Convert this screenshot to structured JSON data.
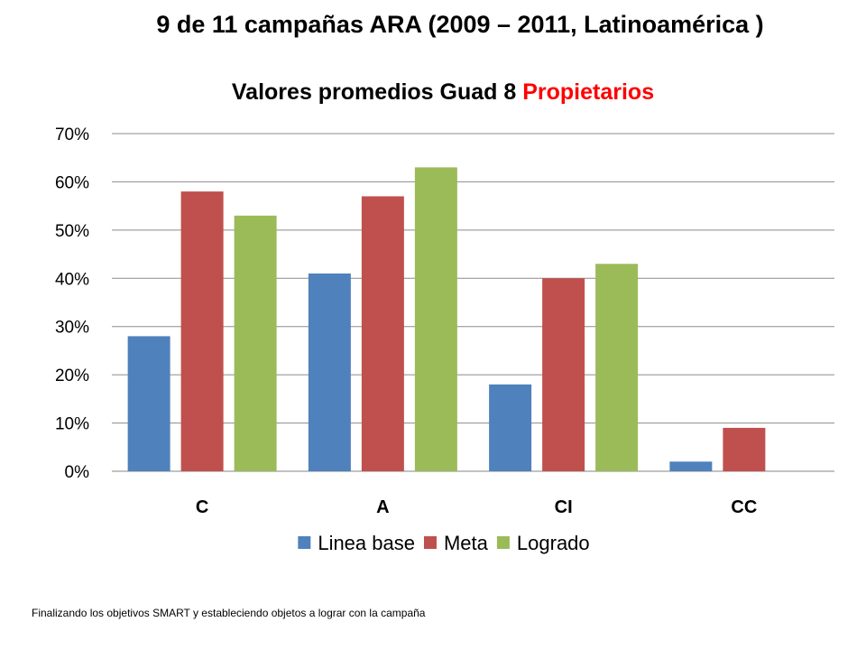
{
  "slide": {
    "title": "9 de 11 campañas ARA (2009 – 2011, Latinoamérica )",
    "footnote": "Finalizando los objetivos SMART y estableciendo objetos a lograr con la campaña"
  },
  "chart_data": {
    "type": "bar",
    "title": "Valores promedios Guad 8",
    "title_highlight": "Propietarios",
    "categories": [
      "C",
      "A",
      "CI",
      "CC"
    ],
    "series": [
      {
        "name": "Linea base",
        "values": [
          28,
          41,
          18,
          2
        ],
        "color": "#4f81bd"
      },
      {
        "name": "Meta",
        "values": [
          58,
          57,
          40,
          9
        ],
        "color": "#c0504d"
      },
      {
        "name": "Logrado",
        "values": [
          53,
          63,
          43,
          null
        ],
        "color": "#9bbb59"
      }
    ],
    "yticks": [
      "0%",
      "10%",
      "20%",
      "30%",
      "40%",
      "50%",
      "60%",
      "70%"
    ],
    "ylim": [
      0,
      70
    ],
    "grid": true,
    "legend": "bottom",
    "accent_color": "#ff0000"
  }
}
